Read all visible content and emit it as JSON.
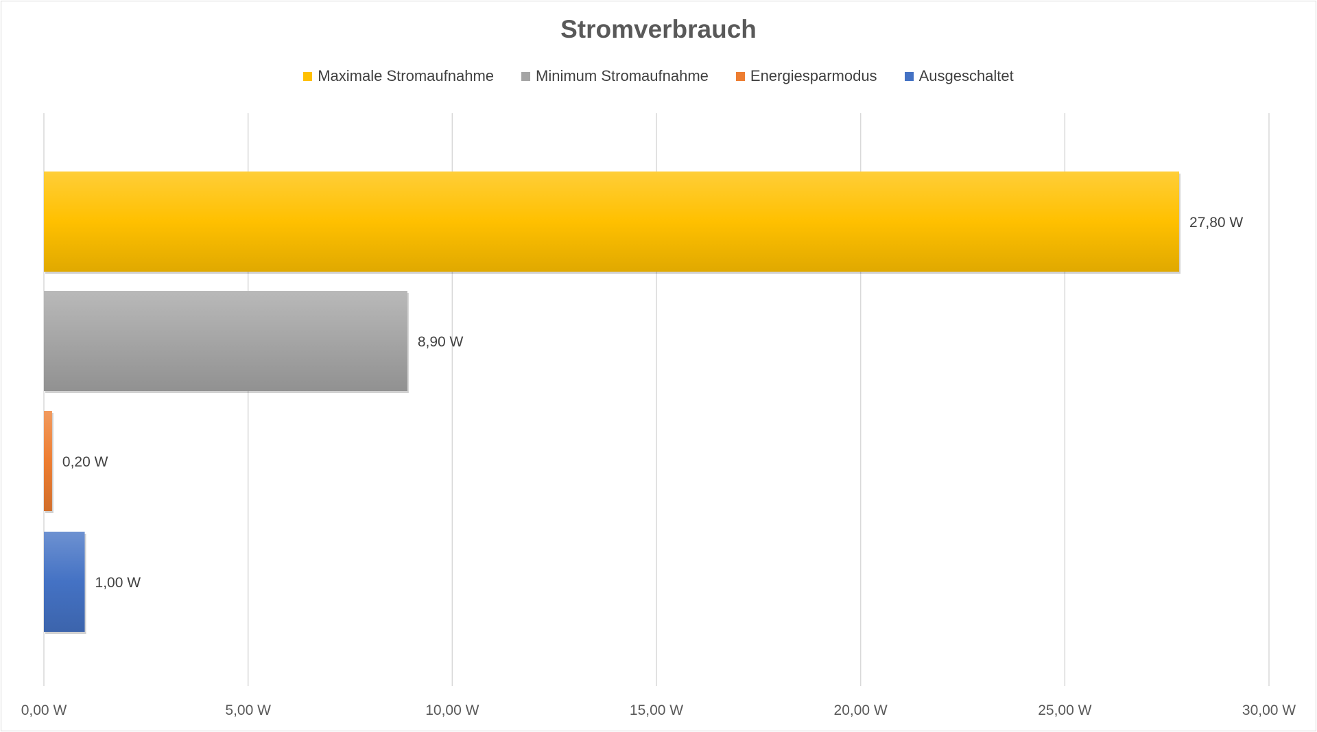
{
  "chart_data": {
    "type": "bar",
    "orientation": "horizontal",
    "title": "Stromverbrauch",
    "xlim": [
      0,
      30
    ],
    "x_ticks": [
      0,
      5,
      10,
      15,
      20,
      25,
      30
    ],
    "x_tick_labels": [
      "0,00 W",
      "5,00 W",
      "10,00 W",
      "15,00 W",
      "20,00 W",
      "25,00 W",
      "30,00 W"
    ],
    "grid": true,
    "legend_position": "top",
    "series": [
      {
        "name": "Maximale Stromaufnahme",
        "value": 27.8,
        "label": "27,80 W",
        "color": "#FFC000"
      },
      {
        "name": "Minimum Stromaufnahme",
        "value": 8.9,
        "label": "8,90 W",
        "color": "#A5A5A5"
      },
      {
        "name": "Energiesparmodus",
        "value": 0.2,
        "label": "0,20 W",
        "color": "#ED7D31"
      },
      {
        "name": "Ausgeschaltet",
        "value": 1.0,
        "label": "1,00 W",
        "color": "#4472C4"
      }
    ]
  }
}
